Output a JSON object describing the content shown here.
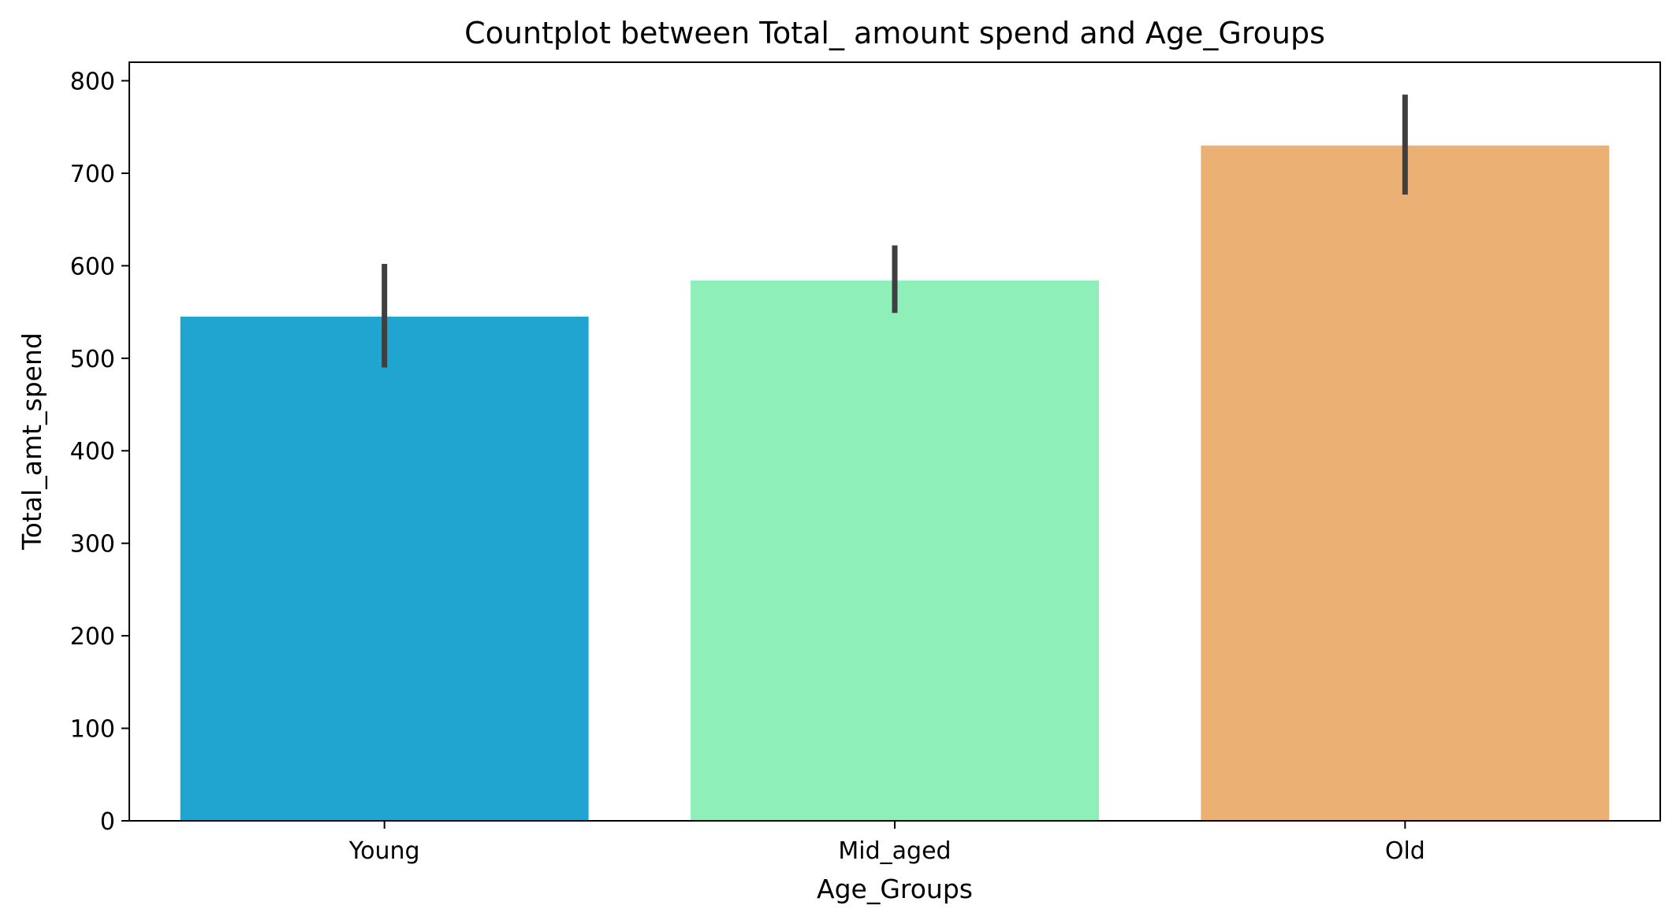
{
  "chart_data": {
    "type": "bar",
    "title": "Countplot between Total_ amount spend and Age_Groups",
    "xlabel": "Age_Groups",
    "ylabel": "Total_amt_spend",
    "categories": [
      "Young",
      "Mid_aged",
      "Old"
    ],
    "values": [
      545,
      584,
      730
    ],
    "error_bars": [
      [
        490,
        602
      ],
      [
        549,
        622
      ],
      [
        677,
        785
      ]
    ],
    "colors": [
      "#1fa5cf",
      "#8fefb8",
      "#ebb174"
    ],
    "error_bar_color": "#3f3f3f",
    "ylim": [
      0,
      820
    ],
    "yticks": [
      0,
      100,
      200,
      300,
      400,
      500,
      600,
      700,
      800
    ],
    "grid": false
  }
}
